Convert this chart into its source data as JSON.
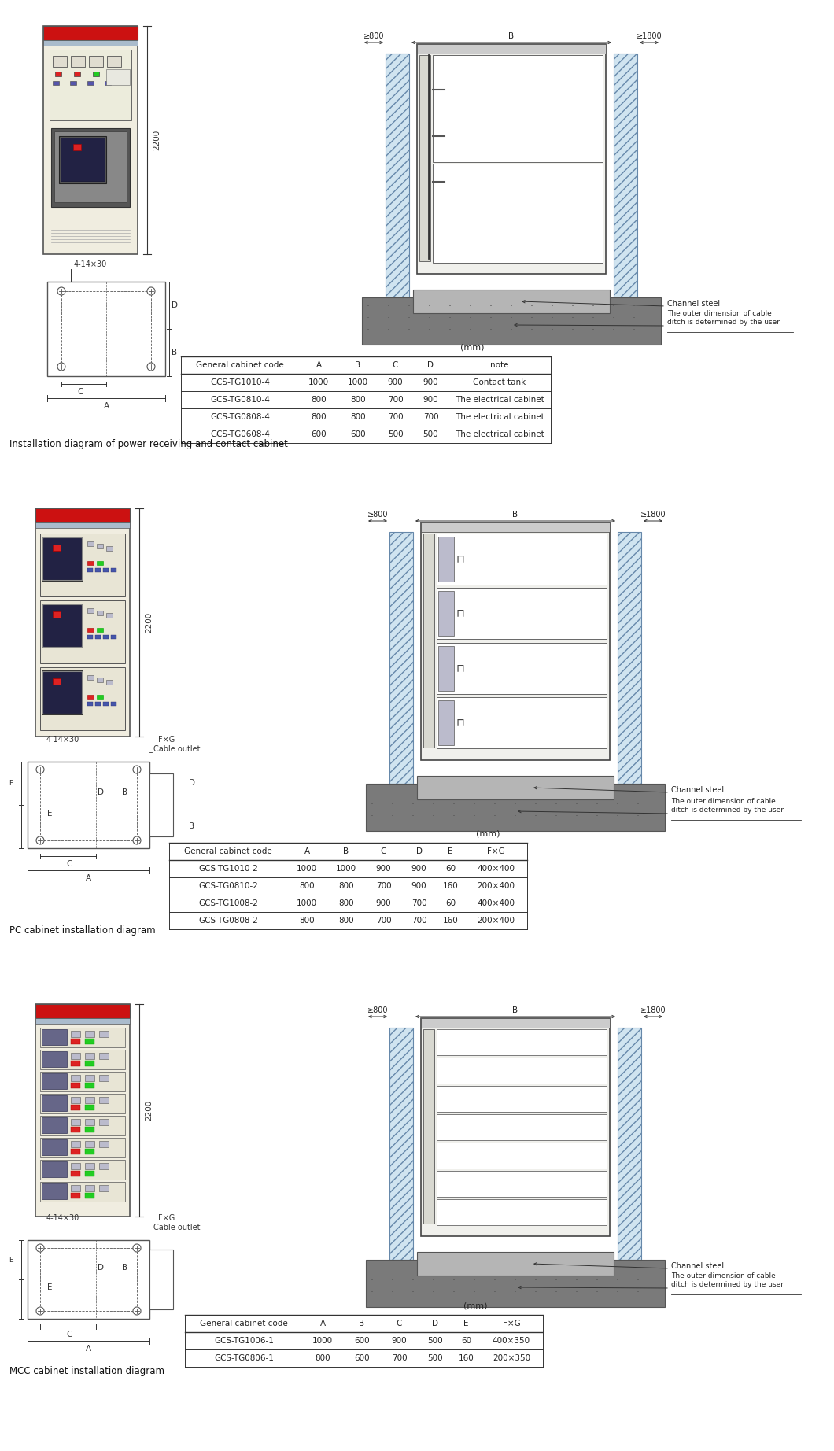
{
  "bg_color": "#ffffff",
  "section1": {
    "label": "Installation diagram of power receiving and contact cabinet",
    "table_title": "(mm)",
    "table_headers": [
      "General cabinet code",
      "A",
      "B",
      "C",
      "D",
      "note"
    ],
    "table_rows": [
      [
        "GCS-TG1010-4",
        "1000",
        "1000",
        "900",
        "900",
        "Contact tank"
      ],
      [
        "GCS-TG0810-4",
        "800",
        "800",
        "700",
        "900",
        "The electrical cabinet"
      ],
      [
        "GCS-TG0808-4",
        "800",
        "800",
        "700",
        "700",
        "The electrical cabinet"
      ],
      [
        "GCS-TG0608-4",
        "600",
        "600",
        "500",
        "500",
        "The electrical cabinet"
      ]
    ]
  },
  "section2": {
    "label": "PC cabinet installation diagram",
    "table_title": "(mm)",
    "table_headers": [
      "General cabinet code",
      "A",
      "B",
      "C",
      "D",
      "E",
      "F×G"
    ],
    "table_rows": [
      [
        "GCS-TG1010-2",
        "1000",
        "1000",
        "900",
        "900",
        "60",
        "400×400"
      ],
      [
        "GCS-TG0810-2",
        "800",
        "800",
        "700",
        "900",
        "160",
        "200×400"
      ],
      [
        "GCS-TG1008-2",
        "1000",
        "800",
        "900",
        "700",
        "60",
        "400×400"
      ],
      [
        "GCS-TG0808-2",
        "800",
        "800",
        "700",
        "700",
        "160",
        "200×400"
      ]
    ]
  },
  "section3": {
    "label": "MCC cabinet installation diagram",
    "table_title": "(mm)",
    "table_headers": [
      "General cabinet code",
      "A",
      "B",
      "C",
      "D",
      "E",
      "F×G"
    ],
    "table_rows": [
      [
        "GCS-TG1006-1",
        "1000",
        "600",
        "900",
        "500",
        "60",
        "400×350"
      ],
      [
        "GCS-TG0806-1",
        "800",
        "600",
        "700",
        "500",
        "160",
        "200×350"
      ]
    ]
  }
}
